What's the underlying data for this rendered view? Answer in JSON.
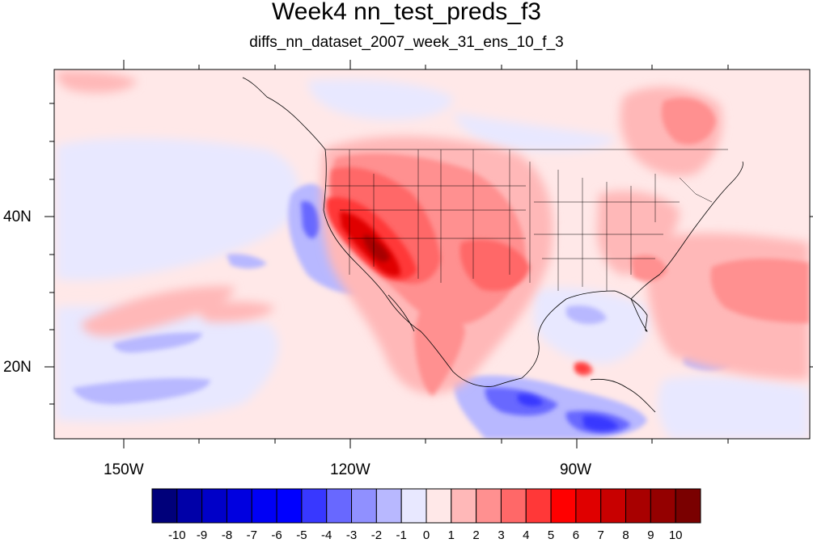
{
  "title": "Week4 nn_test_preds_f3",
  "subtitle": "diffs_nn_dataset_2007_week_31_ens_10_f_3",
  "lon_labels": [
    "150W",
    "120W",
    "90W"
  ],
  "lat_labels": [
    "40N",
    "20N"
  ],
  "colorbar": {
    "labels": [
      "-10",
      "-9",
      "-8",
      "-7",
      "-6",
      "-5",
      "-4",
      "-3",
      "-2",
      "-1",
      "0",
      "1",
      "2",
      "3",
      "4",
      "5",
      "6",
      "7",
      "8",
      "9",
      "10"
    ],
    "colors": [
      "#00007a",
      "#0000a8",
      "#0000c8",
      "#0000e0",
      "#0000f5",
      "#0000ff",
      "#3838ff",
      "#6868ff",
      "#9090ff",
      "#b8b8ff",
      "#e8e8ff",
      "#ffe8e8",
      "#ffb8b8",
      "#ff9090",
      "#ff6868",
      "#ff3838",
      "#ff0000",
      "#e00000",
      "#c80000",
      "#a80000",
      "#940000",
      "#7a0000"
    ]
  }
}
